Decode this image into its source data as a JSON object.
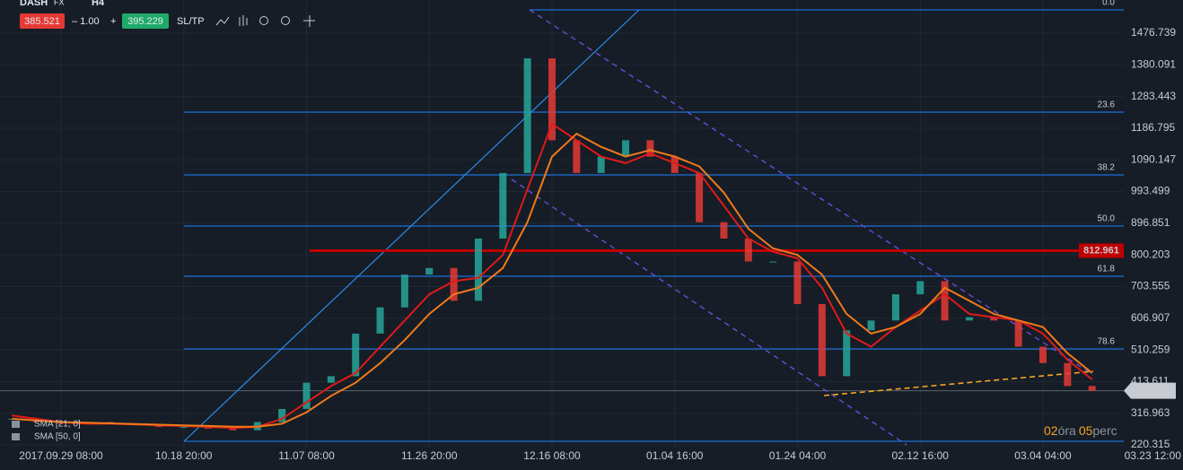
{
  "toolbar": {
    "symbol": "DASH",
    "market": "FX",
    "timeframe": "H4",
    "bid": "385.521",
    "spread_minus": "– 1.00",
    "spread_plus": "+",
    "ask": "395.229",
    "sltp": "SL/TP"
  },
  "chart_data": {
    "type": "candlestick",
    "categories": [
      null,
      null,
      "2017.09.29 08:00",
      null,
      null,
      null,
      null,
      "10.18 20:00",
      null,
      null,
      null,
      null,
      "11.07 08:00",
      null,
      null,
      null,
      null,
      "11.26 20:00",
      null,
      null,
      null,
      null,
      "12.16 08:00",
      null,
      null,
      null,
      null,
      "01.04 16:00",
      null,
      null,
      null,
      null,
      "01.24 04:00",
      null,
      null,
      null,
      null,
      "02.12 16:00",
      null,
      null,
      null,
      null,
      "03.04 04:00",
      null,
      null,
      null,
      null,
      "03.23 12:00"
    ],
    "price": {
      "up_color": "#26a69a",
      "down_color": "#e53935",
      "values": [
        300,
        290,
        285,
        290,
        285,
        280,
        275,
        275,
        270,
        265,
        290,
        330,
        410,
        430,
        560,
        640,
        740,
        760,
        660,
        850,
        1050,
        1400,
        1150,
        1050,
        1100,
        1150,
        1100,
        1050,
        900,
        850,
        780,
        780,
        650,
        430,
        570,
        600,
        680,
        720,
        600,
        610,
        600,
        520,
        470,
        400,
        385.521,
        null,
        null,
        null
      ]
    },
    "series": [
      {
        "name": "SMA [21; 0]",
        "color": "#e01a1a",
        "values": [
          310,
          300,
          290,
          285,
          285,
          283,
          280,
          278,
          275,
          272,
          275,
          300,
          350,
          400,
          440,
          520,
          600,
          680,
          720,
          730,
          800,
          1000,
          1200,
          1150,
          1100,
          1080,
          1110,
          1080,
          1050,
          950,
          850,
          810,
          790,
          700,
          560,
          520,
          580,
          630,
          680,
          620,
          610,
          600,
          560,
          480,
          420,
          null,
          null,
          null
        ]
      },
      {
        "name": "SMA [50, 0]",
        "color": "#f07a1a",
        "values": [
          300,
          295,
          290,
          288,
          286,
          284,
          282,
          280,
          278,
          276,
          276,
          285,
          320,
          370,
          410,
          470,
          540,
          620,
          680,
          700,
          760,
          900,
          1100,
          1170,
          1130,
          1100,
          1120,
          1100,
          1070,
          990,
          880,
          820,
          800,
          740,
          620,
          560,
          580,
          620,
          700,
          660,
          620,
          600,
          580,
          500,
          440,
          null,
          null,
          null
        ]
      }
    ],
    "ylim": [
      209.4,
      1578.0
    ],
    "yticks": [
      1476.739,
      1380.091,
      1283.443,
      1186.795,
      1090.147,
      993.499,
      896.851,
      800.203,
      703.555,
      606.907,
      510.259,
      413.611,
      316.963,
      220.315
    ],
    "grid": true,
    "fib_levels": [
      {
        "label": "0.0",
        "price": 1547.9
      },
      {
        "label": "23.6",
        "price": 1235.9
      },
      {
        "label": "38.2",
        "price": 1044.3
      },
      {
        "label": "50.0",
        "price": 888.3
      },
      {
        "label": "61.8",
        "price": 735.0
      },
      {
        "label": "78.6",
        "price": 513.3
      },
      {
        "price": 231.4
      }
    ],
    "fib_color": "#1e6fd9",
    "level": {
      "value": 812.961,
      "color": "#c00000"
    },
    "last_price": 385.521
  },
  "timer": {
    "hours": "02",
    "hours_unit": "óra",
    "minutes": "05",
    "minutes_unit": "perc"
  }
}
